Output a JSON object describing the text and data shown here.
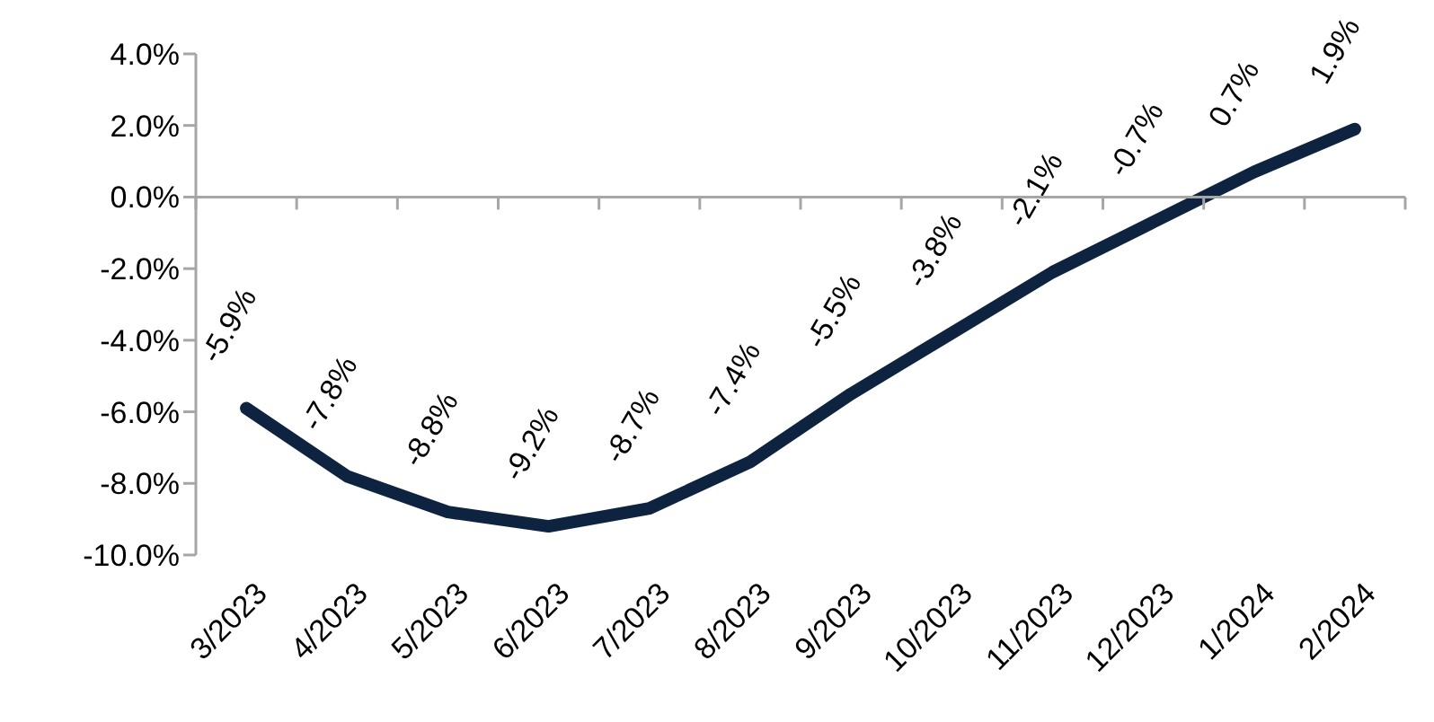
{
  "chart_data": {
    "type": "line",
    "categories": [
      "3/2023",
      "4/2023",
      "5/2023",
      "6/2023",
      "7/2023",
      "8/2023",
      "9/2023",
      "10/2023",
      "11/2023",
      "12/2023",
      "1/2024",
      "2/2024"
    ],
    "series": [
      {
        "color": "#0e2340",
        "values": [
          -5.9,
          -7.8,
          -8.8,
          -9.2,
          -8.7,
          -7.4,
          -5.5,
          -3.8,
          -2.1,
          -0.7,
          0.7,
          1.9
        ],
        "value_labels": [
          "-5.9%",
          "-7.8%",
          "-8.8%",
          "-9.2%",
          "-8.7%",
          "-7.4%",
          "-5.5%",
          "-3.8%",
          "-2.1%",
          "-0.7%",
          "0.7%",
          "1.9%"
        ]
      }
    ],
    "ylim": [
      -10,
      4
    ],
    "yticks": [
      {
        "value": 4,
        "label": "4.0%"
      },
      {
        "value": 2,
        "label": "2.0%"
      },
      {
        "value": 0,
        "label": "0.0%"
      },
      {
        "value": -2,
        "label": "-2.0%"
      },
      {
        "value": -4,
        "label": "-4.0%"
      },
      {
        "value": -6,
        "label": "-6.0%"
      },
      {
        "value": -8,
        "label": "-8.0%"
      },
      {
        "value": -10,
        "label": "-10.0%"
      }
    ],
    "marker": "none",
    "line_style": "solid"
  }
}
